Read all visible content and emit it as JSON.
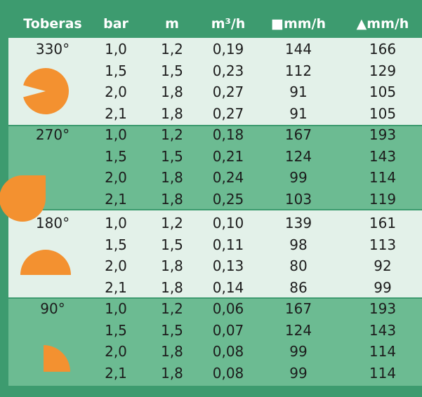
{
  "table": {
    "header": [
      "Toberas",
      "bar",
      "m",
      "m³/h",
      "■mm/h",
      "▲mm/h"
    ],
    "groups": [
      {
        "nozzle": "330°",
        "rows": [
          [
            "1,0",
            "1,2",
            "0,19",
            "144",
            "166"
          ],
          [
            "1,5",
            "1,5",
            "0,23",
            "112",
            "129"
          ],
          [
            "2,0",
            "1,8",
            "0,27",
            "91",
            "105"
          ],
          [
            "2,1",
            "1,8",
            "0,27",
            "91",
            "105"
          ]
        ]
      },
      {
        "nozzle": "270°",
        "rows": [
          [
            "1,0",
            "1,2",
            "0,18",
            "167",
            "193"
          ],
          [
            "1,5",
            "1,5",
            "0,21",
            "124",
            "143"
          ],
          [
            "2,0",
            "1,8",
            "0,24",
            "99",
            "114"
          ],
          [
            "2,1",
            "1,8",
            "0,25",
            "103",
            "119"
          ]
        ]
      },
      {
        "nozzle": "180°",
        "rows": [
          [
            "1,0",
            "1,2",
            "0,10",
            "139",
            "161"
          ],
          [
            "1,5",
            "1,5",
            "0,11",
            "98",
            "113"
          ],
          [
            "2,0",
            "1,8",
            "0,13",
            "80",
            "92"
          ],
          [
            "2,1",
            "1,8",
            "0,14",
            "86",
            "99"
          ]
        ]
      },
      {
        "nozzle": "90°",
        "rows": [
          [
            "1,0",
            "1,2",
            "0,06",
            "167",
            "193"
          ],
          [
            "1,5",
            "1,5",
            "0,07",
            "124",
            "143"
          ],
          [
            "2,0",
            "1,8",
            "0,08",
            "99",
            "114"
          ],
          [
            "2,1",
            "1,8",
            "0,08",
            "99",
            "114"
          ]
        ]
      }
    ]
  }
}
